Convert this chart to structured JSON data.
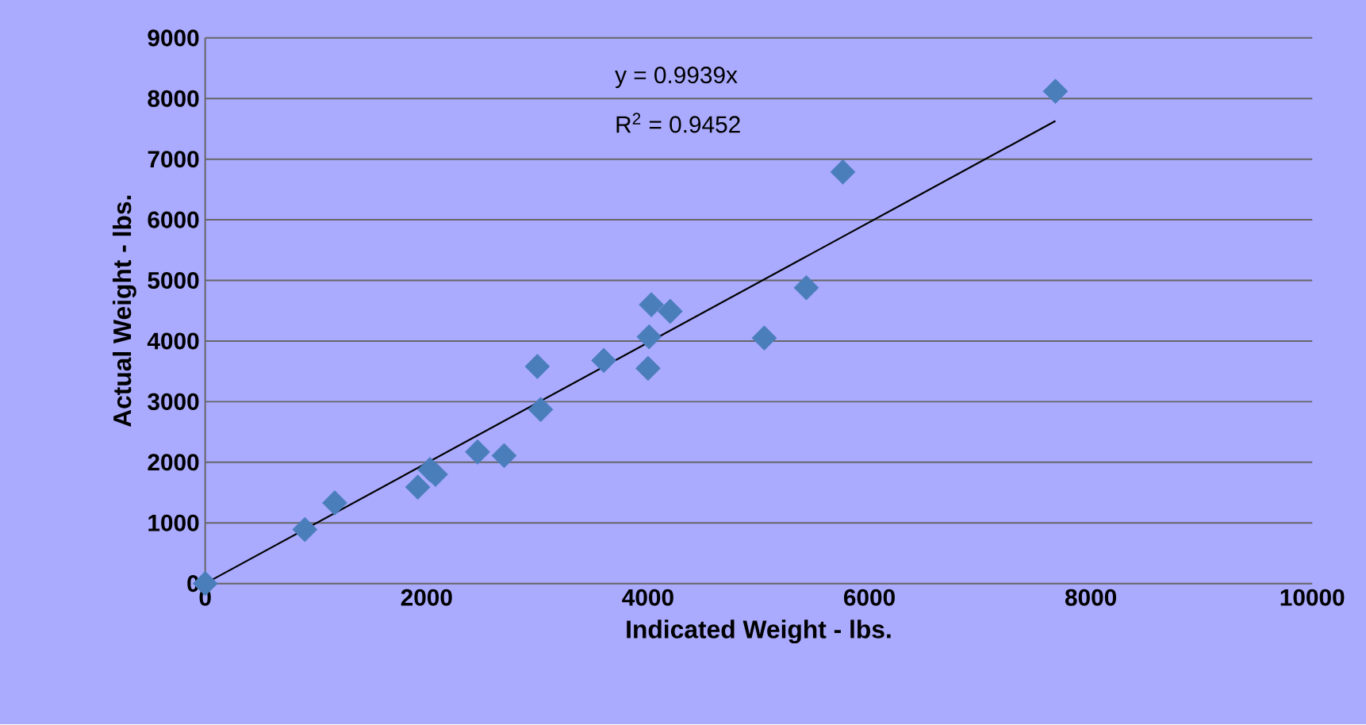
{
  "chart_data": {
    "type": "scatter",
    "xlabel": "Indicated Weight - lbs.",
    "ylabel": "Actual Weight - lbs.",
    "annotations": [
      "y = 0.9939x",
      "R$^{2}$ = 0.9452"
    ],
    "series": [
      {
        "color": "#4a7ebb",
        "marker": "diamond",
        "x": [
          0,
          900,
          1170,
          1920,
          2030,
          2080,
          2460,
          2700,
          3030,
          3000,
          3600,
          4000,
          4010,
          4030,
          4200,
          5050,
          5430,
          5760,
          7680
        ],
        "values": [
          0,
          890,
          1330,
          1590,
          1880,
          1800,
          2170,
          2110,
          2870,
          3580,
          3680,
          3550,
          4070,
          4600,
          4490,
          4050,
          4880,
          6790,
          8120
        ]
      },
      {
        "type": "line",
        "color": "#000000",
        "marker": "none",
        "x": [
          0,
          7680
        ],
        "values": [
          0,
          7630
        ]
      }
    ],
    "xlim": [
      0,
      10000
    ],
    "ylim": [
      0,
      9000
    ],
    "xticks": [
      0,
      2000,
      4000,
      6000,
      8000,
      10000
    ],
    "yticks": [
      0,
      1000,
      2000,
      3000,
      4000,
      5000,
      6000,
      7000,
      8000,
      9000
    ],
    "grid": "y"
  }
}
